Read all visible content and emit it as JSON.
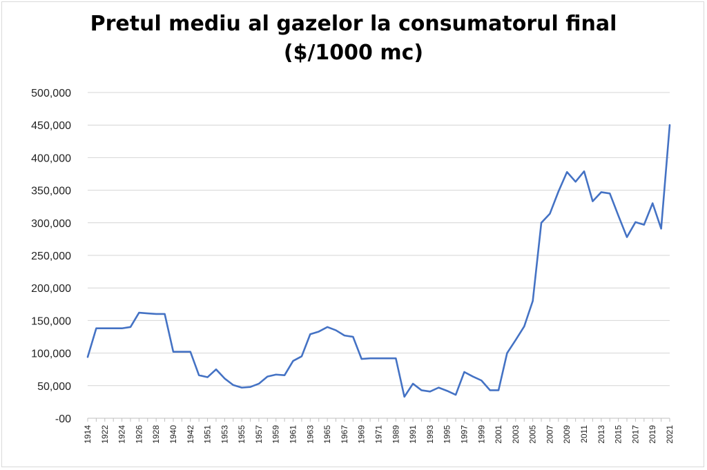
{
  "chart_data": {
    "type": "line",
    "title_line1": "Pretul mediu al gazelor la consumatorul final",
    "title_line2": "($/1000 mc)",
    "xlabel": "",
    "ylabel": "",
    "ylim": [
      0,
      500000
    ],
    "y_ticks": [
      0,
      50000,
      100000,
      150000,
      200000,
      250000,
      300000,
      350000,
      400000,
      450000,
      500000
    ],
    "y_tick_labels": [
      "-00",
      "50,000",
      "100,000",
      "150,000",
      "200,000",
      "250,000",
      "300,000",
      "350,000",
      "400,000",
      "450,000",
      "500,000"
    ],
    "grid": true,
    "legend": "none",
    "line_color": "#4472c4",
    "x": [
      "1914",
      "1921",
      "1922",
      "1923",
      "1924",
      "1925",
      "1926",
      "1927",
      "1928",
      "1929",
      "1940",
      "1941",
      "1942",
      "1950",
      "1951",
      "1952",
      "1953",
      "1954",
      "1955",
      "1956",
      "1957",
      "1958",
      "1959",
      "1960",
      "1961",
      "1962",
      "1963",
      "1964",
      "1965",
      "1966",
      "1967",
      "1968",
      "1969",
      "1970",
      "1971",
      "1972",
      "1989",
      "1990",
      "1991",
      "1992",
      "1993",
      "1994",
      "1995",
      "1996",
      "1997",
      "1998",
      "1999",
      "2000",
      "2001",
      "2002",
      "2003",
      "2004",
      "2005",
      "2006",
      "2007",
      "2008",
      "2009",
      "2010",
      "2011",
      "2012",
      "2013",
      "2014",
      "2015",
      "2016",
      "2017",
      "2018",
      "2019",
      "2020",
      "2021"
    ],
    "x_tick_labels_shown": [
      "1914",
      "1922",
      "1924",
      "1926",
      "1928",
      "1940",
      "1942",
      "1951",
      "1953",
      "1955",
      "1957",
      "1959",
      "1961",
      "1963",
      "1965",
      "1967",
      "1969",
      "1971",
      "1989",
      "1991",
      "1993",
      "1995",
      "1997",
      "1999",
      "2001",
      "2003",
      "2005",
      "2007",
      "2009",
      "2011",
      "2013",
      "2015",
      "2017",
      "2019",
      "2021"
    ],
    "series": [
      {
        "values": [
          94000,
          138000,
          138000,
          138000,
          138000,
          140000,
          162000,
          161000,
          160000,
          160000,
          102000,
          102000,
          102000,
          66000,
          63000,
          75000,
          61000,
          51000,
          47000,
          48000,
          53000,
          64000,
          67000,
          66000,
          88000,
          95000,
          129000,
          133000,
          140000,
          135000,
          127000,
          125000,
          91000,
          92000,
          92000,
          92000,
          92000,
          33000,
          53000,
          43000,
          41000,
          47000,
          42000,
          36000,
          71000,
          64000,
          58000,
          43000,
          43000,
          100000,
          120000,
          141000,
          180000,
          300000,
          314000,
          348000,
          378000,
          363000,
          379000,
          333000,
          347000,
          345000,
          311000,
          278000,
          301000,
          297000,
          330000,
          291000,
          450000
        ]
      }
    ]
  }
}
